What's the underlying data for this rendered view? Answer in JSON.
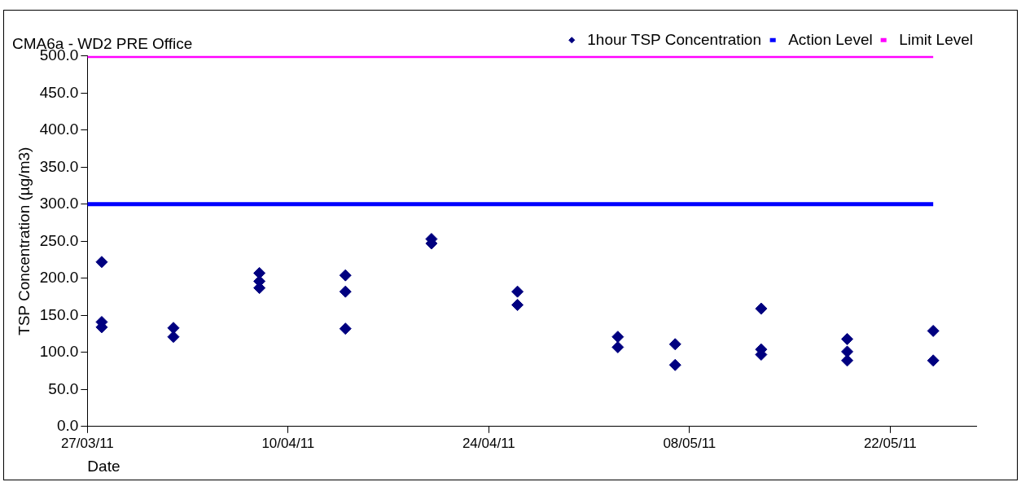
{
  "chart_data": {
    "type": "scatter",
    "title": "CMA6a - WD2 PRE Office",
    "xlabel": "Date",
    "ylabel": "TSP Concentration (µg/m3)",
    "xlim": [
      "2011-03-27",
      "2011-05-28"
    ],
    "xticks": [
      {
        "value": "2011-03-27",
        "label": "27/03/11"
      },
      {
        "value": "2011-04-10",
        "label": "10/04/11"
      },
      {
        "value": "2011-04-24",
        "label": "24/04/11"
      },
      {
        "value": "2011-05-08",
        "label": "08/05/11"
      },
      {
        "value": "2011-05-22",
        "label": "22/05/11"
      }
    ],
    "ylim": [
      0,
      500
    ],
    "yticks": [
      {
        "value": 0,
        "label": "0.0"
      },
      {
        "value": 50,
        "label": "50.0"
      },
      {
        "value": 100,
        "label": "100.0"
      },
      {
        "value": 150,
        "label": "150.0"
      },
      {
        "value": 200,
        "label": "200.0"
      },
      {
        "value": 250,
        "label": "250.0"
      },
      {
        "value": 300,
        "label": "300.0"
      },
      {
        "value": 350,
        "label": "350.0"
      },
      {
        "value": 400,
        "label": "400.0"
      },
      {
        "value": 450,
        "label": "450.0"
      },
      {
        "value": 500,
        "label": "500.0"
      }
    ],
    "grid": false,
    "legend": "top right",
    "marker": "diamond",
    "series": [
      {
        "name": "1hour TSP Concentration",
        "type": "scatter",
        "color": "#000080",
        "x": [
          "2011-03-28",
          "2011-03-28",
          "2011-03-28",
          "2011-04-02",
          "2011-04-02",
          "2011-04-08",
          "2011-04-08",
          "2011-04-08",
          "2011-04-14",
          "2011-04-14",
          "2011-04-14",
          "2011-04-20",
          "2011-04-20",
          "2011-04-26",
          "2011-04-26",
          "2011-05-03",
          "2011-05-03",
          "2011-05-07",
          "2011-05-07",
          "2011-05-13",
          "2011-05-13",
          "2011-05-13",
          "2011-05-19",
          "2011-05-19",
          "2011-05-19",
          "2011-05-25",
          "2011-05-25"
        ],
        "values": [
          222,
          141,
          134,
          133,
          121,
          207,
          196,
          187,
          204,
          182,
          132,
          253,
          247,
          182,
          164,
          121,
          107,
          111,
          83,
          159,
          104,
          97,
          118,
          101,
          89,
          129,
          89
        ]
      },
      {
        "name": "Action Level",
        "type": "line",
        "color": "#0000ff",
        "marker": "none",
        "x": [
          "2011-03-27",
          "2011-05-25"
        ],
        "values": [
          300,
          300
        ]
      },
      {
        "name": "Limit Level",
        "type": "line",
        "color": "#ff00ff",
        "marker": "none",
        "x": [
          "2011-03-27",
          "2011-05-25"
        ],
        "values": [
          500,
          500
        ]
      }
    ]
  }
}
